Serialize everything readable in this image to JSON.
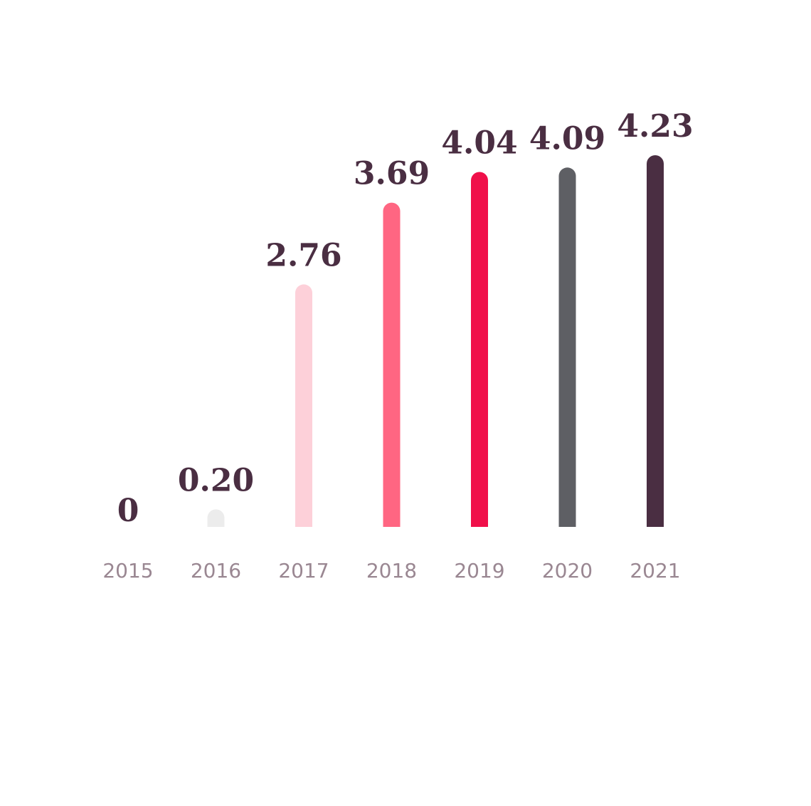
{
  "chart_data": {
    "type": "bar",
    "categories": [
      "2015",
      "2016",
      "2017",
      "2018",
      "2019",
      "2020",
      "2021"
    ],
    "values": [
      0,
      0.2,
      2.76,
      3.69,
      4.04,
      4.09,
      4.23
    ],
    "value_labels": [
      "0",
      "0.20",
      "2.76",
      "3.69",
      "4.04",
      "4.09",
      "4.23"
    ],
    "bar_colors": [
      "#ececec",
      "#ececec",
      "#fdd0d9",
      "#ff6682",
      "#f0104a",
      "#5e5f64",
      "#4a2e42"
    ],
    "ylim": [
      0,
      4.23
    ],
    "grid": false,
    "legend": "none"
  }
}
